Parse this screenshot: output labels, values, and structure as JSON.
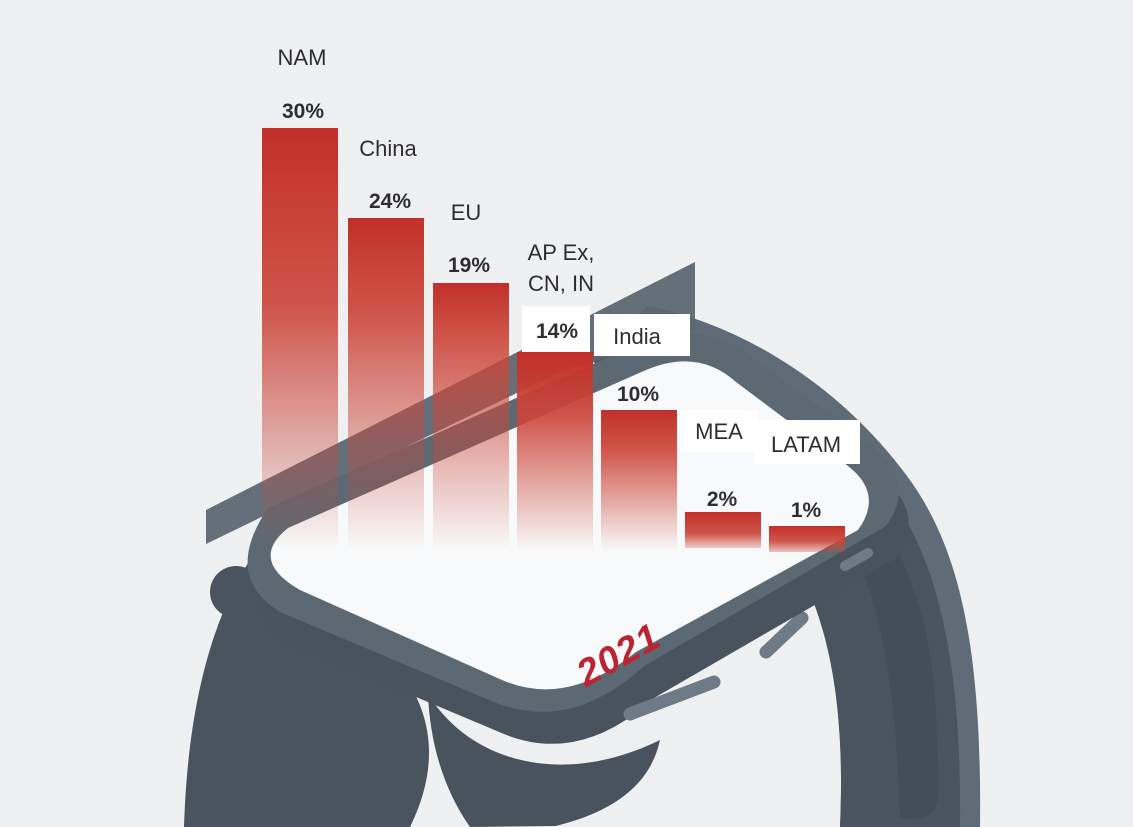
{
  "chart_data": {
    "type": "bar",
    "categories": [
      "NAM",
      "China",
      "EU",
      "AP Ex, CN, IN",
      "India",
      "MEA",
      "LATAM"
    ],
    "categories_display": [
      [
        "NAM"
      ],
      [
        "China"
      ],
      [
        "EU"
      ],
      [
        "AP Ex,",
        "CN, IN"
      ],
      [
        "India"
      ],
      [
        "MEA"
      ],
      [
        "LATAM"
      ]
    ],
    "values": [
      30,
      24,
      19,
      14,
      10,
      2,
      1
    ],
    "labels": [
      "30%",
      "24%",
      "19%",
      "14%",
      "10%",
      "2%",
      "1%"
    ],
    "unit": "%",
    "year_label": "2021",
    "bar_color": "#c1302a",
    "bar_color_mid": "#cc463a",
    "year_color": "#bb2430",
    "label_text_color": "#2e2e30",
    "label_box_color": "#ffffff",
    "legend_position": "none",
    "grid": false
  },
  "watch": {
    "background_color": "#eef0f2",
    "face_color": "#f8f9fa",
    "frame_color": "#5c6973",
    "body_shadow_color": "#48535d",
    "strap_color": "#49545e",
    "strap_edge_color": "#5f6c78",
    "strap_inner_color": "#424c56",
    "band_overlay_color": "#5d6772",
    "slit_color": "#6e7a85"
  }
}
